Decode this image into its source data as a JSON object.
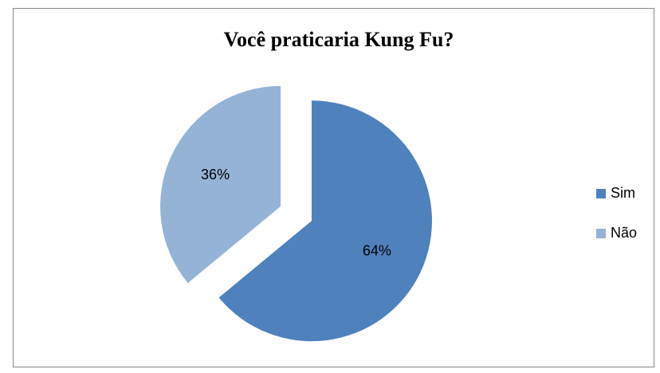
{
  "chart_data": {
    "type": "pie",
    "title": "Você praticaria Kung Fu?",
    "categories": [
      "Sim",
      "Não"
    ],
    "values": [
      64,
      36
    ],
    "value_labels": [
      "64%",
      "36%"
    ],
    "colors": [
      "#4f81bd",
      "#95b3d7"
    ],
    "legend": "right",
    "exploded": true
  }
}
